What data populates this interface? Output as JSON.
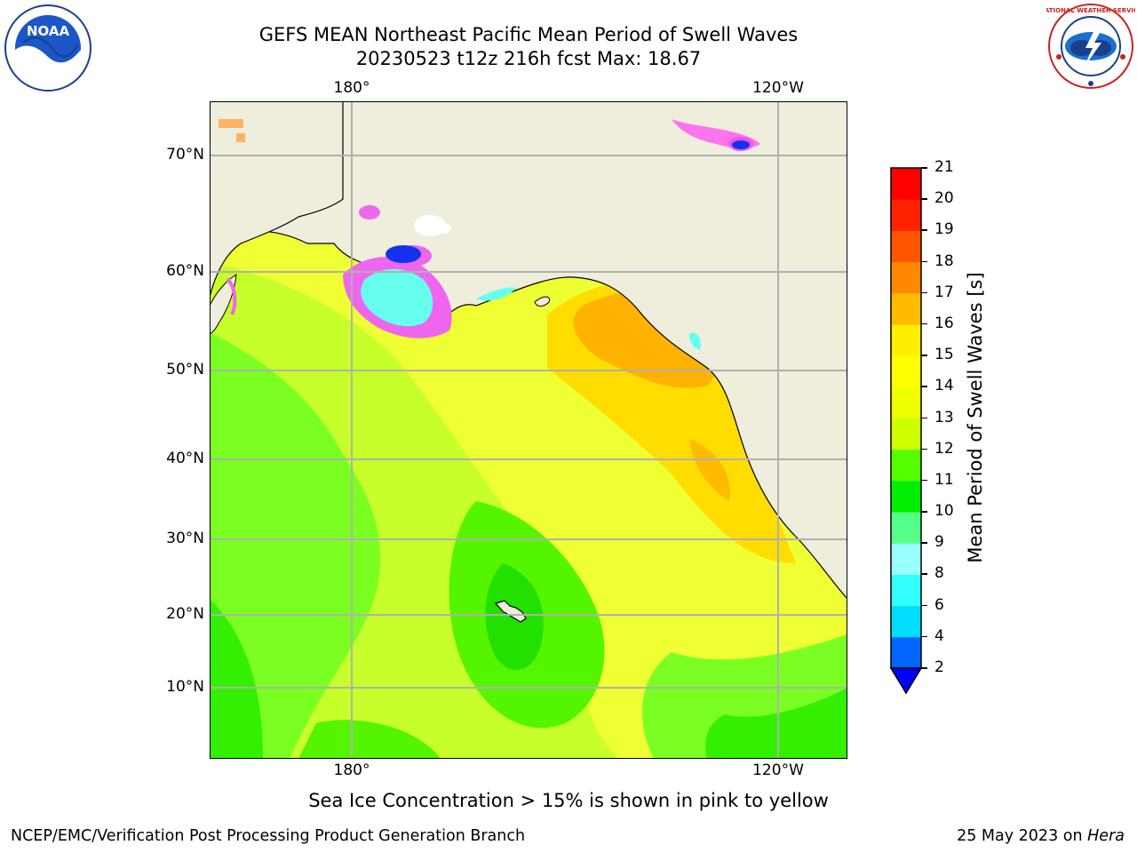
{
  "title": {
    "line1": "GEFS MEAN Northeast Pacific Mean Period of Swell Waves",
    "line2": "20230523 t12z 216h fcst   Max: 18.67"
  },
  "map": {
    "top_labels": [
      "180°",
      "120°W"
    ],
    "bottom_labels": [
      "180°",
      "120°W"
    ],
    "lat_labels": [
      "70°N",
      "60°N",
      "50°N",
      "40°N",
      "30°N",
      "20°N",
      "10°N"
    ],
    "colors": {
      "land": "#efeddc",
      "grid": "#b0b0b0",
      "coast": "#000000"
    }
  },
  "colorbar": {
    "label": "Mean Period of Swell Waves [s]",
    "ticks": [
      "2",
      "4",
      "6",
      "8",
      "9",
      "10",
      "11",
      "12",
      "13",
      "14",
      "15",
      "16",
      "17",
      "18",
      "19",
      "20",
      "21"
    ],
    "colors": [
      "#0066ff",
      "#00ddff",
      "#33ffff",
      "#99ffff",
      "#55ff88",
      "#00ee00",
      "#55ff00",
      "#ccff00",
      "#eeff00",
      "#ffff00",
      "#ffee00",
      "#ffbb00",
      "#ff8800",
      "#ff5500",
      "#ff2200",
      "#ff0000"
    ],
    "under_color": "#0000ff"
  },
  "footnote": "Sea Ice Concentration > 15% is shown in pink to yellow",
  "footer": {
    "credit": "NCEP/EMC/Verification Post Processing Product Generation Branch",
    "date_prefix": "25 May 2023 on ",
    "host": "Hera"
  },
  "logos": {
    "left_text": "NOAA",
    "right_text": "NATIONAL WEATHER SERVICE"
  }
}
